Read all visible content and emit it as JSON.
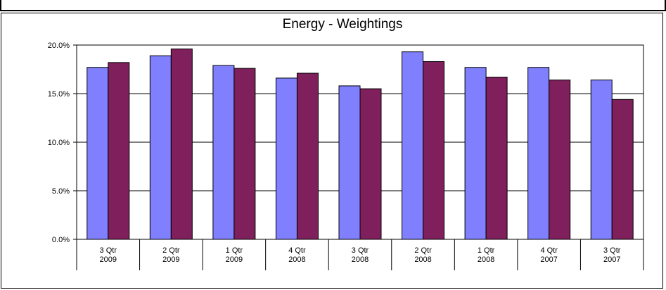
{
  "chart_data": {
    "type": "bar",
    "title": "Energy  -  Weightings",
    "xlabel": "",
    "ylabel": "",
    "ylim": [
      0,
      0.2
    ],
    "yticks": [
      "0.0%",
      "5.0%",
      "10.0%",
      "15.0%",
      "20.0%"
    ],
    "grid": true,
    "legend": "none",
    "categories": [
      [
        "3 Qtr",
        "2009"
      ],
      [
        "2 Qtr",
        "2009"
      ],
      [
        "1 Qtr",
        "2009"
      ],
      [
        "4 Qtr",
        "2008"
      ],
      [
        "3 Qtr",
        "2008"
      ],
      [
        "2 Qtr",
        "2008"
      ],
      [
        "1 Qtr",
        "2008"
      ],
      [
        "4 Qtr",
        "2007"
      ],
      [
        "3 Qtr",
        "2007"
      ]
    ],
    "series": [
      {
        "color": "#8080ff",
        "values": [
          0.177,
          0.189,
          0.179,
          0.166,
          0.158,
          0.193,
          0.177,
          0.177,
          0.164
        ]
      },
      {
        "color": "#7f1f5c",
        "values": [
          0.182,
          0.196,
          0.176,
          0.171,
          0.155,
          0.183,
          0.167,
          0.164,
          0.144
        ]
      }
    ]
  }
}
